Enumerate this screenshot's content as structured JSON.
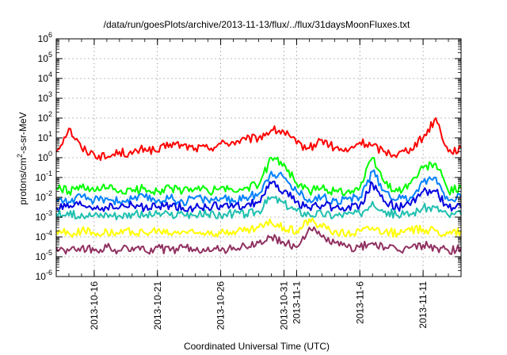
{
  "chart_data": {
    "type": "line",
    "title": "/data/run/goesPlots/archive/2013-11-13/flux/../flux/31daysMoonFluxes.txt",
    "xlabel": "Coordinated Universal Time (UTC)",
    "ylabel": "protons/cm2-s-sr-MeV",
    "ylabel_parts": {
      "pre": "protons/cm",
      "sup": "2",
      "post": "-s-sr-MeV"
    },
    "x_range": [
      "2013-10-13",
      "2013-11-14"
    ],
    "x_ticks": [
      {
        "date": "2013-10-16",
        "label": [
          "2013-10-16"
        ]
      },
      {
        "date": "2013-10-21",
        "label": [
          "2013-10-21"
        ]
      },
      {
        "date": "2013-10-26",
        "label": [
          "2013-10-26"
        ]
      },
      {
        "date": "2013-10-31",
        "label": [
          "2013-10-31"
        ]
      },
      {
        "date": "2013-11-01",
        "label": [
          "2013-11-1"
        ]
      },
      {
        "date": "2013-11-06",
        "label": [
          "2013-11-6"
        ]
      },
      {
        "date": "2013-11-11",
        "label": [
          "2013-11-11"
        ]
      }
    ],
    "y_scale": "log",
    "y_range": [
      1e-06,
      1000000.0
    ],
    "y_ticks": [
      {
        "value": 1e-06,
        "base": "10",
        "exp": "-6"
      },
      {
        "value": 1e-05,
        "base": "10",
        "exp": "-5"
      },
      {
        "value": 0.0001,
        "base": "10",
        "exp": "-4"
      },
      {
        "value": 0.001,
        "base": "10",
        "exp": "-3"
      },
      {
        "value": 0.01,
        "base": "10",
        "exp": "-2"
      },
      {
        "value": 0.1,
        "base": "10",
        "exp": "-1"
      },
      {
        "value": 1,
        "base": "10",
        "exp": "0"
      },
      {
        "value": 10,
        "base": "10",
        "exp": "1"
      },
      {
        "value": 100,
        "base": "10",
        "exp": "2"
      },
      {
        "value": 1000,
        "base": "10",
        "exp": "3"
      },
      {
        "value": 10000,
        "base": "10",
        "exp": "4"
      },
      {
        "value": 100000,
        "base": "10",
        "exp": "5"
      },
      {
        "value": 1000000,
        "base": "10",
        "exp": "6"
      }
    ],
    "grid": true,
    "series": [
      {
        "color": "#ff0000",
        "points": [
          [
            "2013-10-13",
            2
          ],
          [
            "2013-10-14",
            30
          ],
          [
            "2013-10-15",
            3
          ],
          [
            "2013-10-16",
            1.5
          ],
          [
            "2013-10-17",
            1
          ],
          [
            "2013-10-18",
            2
          ],
          [
            "2013-10-19",
            1.5
          ],
          [
            "2013-10-20",
            3
          ],
          [
            "2013-10-21",
            2
          ],
          [
            "2013-10-22",
            5
          ],
          [
            "2013-10-23",
            4
          ],
          [
            "2013-10-24",
            3
          ],
          [
            "2013-10-25",
            3
          ],
          [
            "2013-10-26",
            5
          ],
          [
            "2013-10-27",
            6
          ],
          [
            "2013-10-28",
            8
          ],
          [
            "2013-10-29",
            10
          ],
          [
            "2013-10-30",
            25
          ],
          [
            "2013-10-31",
            20
          ],
          [
            "2013-11-01",
            5
          ],
          [
            "2013-11-02",
            3
          ],
          [
            "2013-11-03",
            8
          ],
          [
            "2013-11-04",
            3
          ],
          [
            "2013-11-05",
            2
          ],
          [
            "2013-11-06",
            6
          ],
          [
            "2013-11-07",
            4
          ],
          [
            "2013-11-08",
            2
          ],
          [
            "2013-11-09",
            1.5
          ],
          [
            "2013-11-10",
            3
          ],
          [
            "2013-11-11",
            10
          ],
          [
            "2013-11-12",
            100
          ],
          [
            "2013-11-13",
            2
          ],
          [
            "2013-11-14",
            3
          ]
        ]
      },
      {
        "color": "#00ff00",
        "points": [
          [
            "2013-10-13",
            0.03
          ],
          [
            "2013-10-14",
            0.02
          ],
          [
            "2013-10-15",
            0.03
          ],
          [
            "2013-10-16",
            0.02
          ],
          [
            "2013-10-17",
            0.03
          ],
          [
            "2013-10-18",
            0.02
          ],
          [
            "2013-10-19",
            0.02
          ],
          [
            "2013-10-20",
            0.03
          ],
          [
            "2013-10-21",
            0.02
          ],
          [
            "2013-10-22",
            0.03
          ],
          [
            "2013-10-23",
            0.02
          ],
          [
            "2013-10-24",
            0.03
          ],
          [
            "2013-10-25",
            0.02
          ],
          [
            "2013-10-26",
            0.03
          ],
          [
            "2013-10-27",
            0.02
          ],
          [
            "2013-10-28",
            0.03
          ],
          [
            "2013-10-29",
            0.04
          ],
          [
            "2013-10-30",
            1
          ],
          [
            "2013-10-31",
            0.5
          ],
          [
            "2013-11-01",
            0.05
          ],
          [
            "2013-11-02",
            0.02
          ],
          [
            "2013-11-03",
            0.03
          ],
          [
            "2013-11-04",
            0.02
          ],
          [
            "2013-11-05",
            0.02
          ],
          [
            "2013-11-06",
            0.03
          ],
          [
            "2013-11-07",
            1
          ],
          [
            "2013-11-08",
            0.05
          ],
          [
            "2013-11-09",
            0.02
          ],
          [
            "2013-11-10",
            0.05
          ],
          [
            "2013-11-11",
            0.3
          ],
          [
            "2013-11-12",
            0.5
          ],
          [
            "2013-11-13",
            0.02
          ],
          [
            "2013-11-14",
            0.03
          ]
        ]
      },
      {
        "color": "#0080ff",
        "points": [
          [
            "2013-10-13",
            0.008
          ],
          [
            "2013-10-14",
            0.006
          ],
          [
            "2013-10-15",
            0.01
          ],
          [
            "2013-10-16",
            0.007
          ],
          [
            "2013-10-17",
            0.009
          ],
          [
            "2013-10-18",
            0.006
          ],
          [
            "2013-10-19",
            0.008
          ],
          [
            "2013-10-20",
            0.01
          ],
          [
            "2013-10-21",
            0.007
          ],
          [
            "2013-10-22",
            0.009
          ],
          [
            "2013-10-23",
            0.006
          ],
          [
            "2013-10-24",
            0.01
          ],
          [
            "2013-10-25",
            0.007
          ],
          [
            "2013-10-26",
            0.009
          ],
          [
            "2013-10-27",
            0.006
          ],
          [
            "2013-10-28",
            0.01
          ],
          [
            "2013-10-29",
            0.015
          ],
          [
            "2013-10-30",
            0.2
          ],
          [
            "2013-10-31",
            0.1
          ],
          [
            "2013-11-01",
            0.02
          ],
          [
            "2013-11-02",
            0.008
          ],
          [
            "2013-11-03",
            0.01
          ],
          [
            "2013-11-04",
            0.007
          ],
          [
            "2013-11-05",
            0.008
          ],
          [
            "2013-11-06",
            0.01
          ],
          [
            "2013-11-07",
            0.2
          ],
          [
            "2013-11-08",
            0.02
          ],
          [
            "2013-11-09",
            0.008
          ],
          [
            "2013-11-10",
            0.01
          ],
          [
            "2013-11-11",
            0.06
          ],
          [
            "2013-11-12",
            0.1
          ],
          [
            "2013-11-13",
            0.007
          ],
          [
            "2013-11-14",
            0.01
          ]
        ]
      },
      {
        "color": "#0000e0",
        "points": [
          [
            "2013-10-13",
            0.003
          ],
          [
            "2013-10-14",
            0.003
          ],
          [
            "2013-10-15",
            0.004
          ],
          [
            "2013-10-16",
            0.003
          ],
          [
            "2013-10-17",
            0.003
          ],
          [
            "2013-10-18",
            0.003
          ],
          [
            "2013-10-19",
            0.004
          ],
          [
            "2013-10-20",
            0.003
          ],
          [
            "2013-10-21",
            0.003
          ],
          [
            "2013-10-22",
            0.004
          ],
          [
            "2013-10-23",
            0.003
          ],
          [
            "2013-10-24",
            0.003
          ],
          [
            "2013-10-25",
            0.003
          ],
          [
            "2013-10-26",
            0.004
          ],
          [
            "2013-10-27",
            0.003
          ],
          [
            "2013-10-28",
            0.004
          ],
          [
            "2013-10-29",
            0.006
          ],
          [
            "2013-10-30",
            0.05
          ],
          [
            "2013-10-31",
            0.02
          ],
          [
            "2013-11-01",
            0.006
          ],
          [
            "2013-11-02",
            0.003
          ],
          [
            "2013-11-03",
            0.004
          ],
          [
            "2013-11-04",
            0.003
          ],
          [
            "2013-11-05",
            0.003
          ],
          [
            "2013-11-06",
            0.004
          ],
          [
            "2013-11-07",
            0.05
          ],
          [
            "2013-11-08",
            0.006
          ],
          [
            "2013-11-09",
            0.003
          ],
          [
            "2013-11-10",
            0.004
          ],
          [
            "2013-11-11",
            0.02
          ],
          [
            "2013-11-12",
            0.02
          ],
          [
            "2013-11-13",
            0.003
          ],
          [
            "2013-11-14",
            0.003
          ]
        ]
      },
      {
        "color": "#20c0b0",
        "points": [
          [
            "2013-10-13",
            0.0015
          ],
          [
            "2013-10-14",
            0.0012
          ],
          [
            "2013-10-15",
            0.0015
          ],
          [
            "2013-10-16",
            0.0012
          ],
          [
            "2013-10-17",
            0.0014
          ],
          [
            "2013-10-18",
            0.0012
          ],
          [
            "2013-10-19",
            0.0015
          ],
          [
            "2013-10-20",
            0.0012
          ],
          [
            "2013-10-21",
            0.0014
          ],
          [
            "2013-10-22",
            0.0012
          ],
          [
            "2013-10-23",
            0.0015
          ],
          [
            "2013-10-24",
            0.0012
          ],
          [
            "2013-10-25",
            0.0014
          ],
          [
            "2013-10-26",
            0.0012
          ],
          [
            "2013-10-27",
            0.0015
          ],
          [
            "2013-10-28",
            0.0014
          ],
          [
            "2013-10-29",
            0.002
          ],
          [
            "2013-10-30",
            0.01
          ],
          [
            "2013-10-31",
            0.005
          ],
          [
            "2013-11-01",
            0.002
          ],
          [
            "2013-11-02",
            0.0014
          ],
          [
            "2013-11-03",
            0.0015
          ],
          [
            "2013-11-04",
            0.0012
          ],
          [
            "2013-11-05",
            0.0014
          ],
          [
            "2013-11-06",
            0.0015
          ],
          [
            "2013-11-07",
            0.006
          ],
          [
            "2013-11-08",
            0.002
          ],
          [
            "2013-11-09",
            0.0012
          ],
          [
            "2013-11-10",
            0.0014
          ],
          [
            "2013-11-11",
            0.003
          ],
          [
            "2013-11-12",
            0.003
          ],
          [
            "2013-11-13",
            0.0012
          ],
          [
            "2013-11-14",
            0.0013
          ]
        ]
      },
      {
        "color": "#ffff00",
        "points": [
          [
            "2013-10-13",
            0.0002
          ],
          [
            "2013-10-14",
            0.00015
          ],
          [
            "2013-10-15",
            0.0002
          ],
          [
            "2013-10-16",
            0.00015
          ],
          [
            "2013-10-17",
            0.0002
          ],
          [
            "2013-10-18",
            0.00015
          ],
          [
            "2013-10-19",
            0.0002
          ],
          [
            "2013-10-20",
            0.00015
          ],
          [
            "2013-10-21",
            0.0002
          ],
          [
            "2013-10-22",
            0.00015
          ],
          [
            "2013-10-23",
            0.0002
          ],
          [
            "2013-10-24",
            0.00015
          ],
          [
            "2013-10-25",
            0.0002
          ],
          [
            "2013-10-26",
            0.00015
          ],
          [
            "2013-10-27",
            0.0002
          ],
          [
            "2013-10-28",
            0.0002
          ],
          [
            "2013-10-29",
            0.0003
          ],
          [
            "2013-10-30",
            0.0005
          ],
          [
            "2013-10-31",
            0.0003
          ],
          [
            "2013-11-01",
            0.0002
          ],
          [
            "2013-11-02",
            0.0008
          ],
          [
            "2013-11-03",
            0.0003
          ],
          [
            "2013-11-04",
            0.0002
          ],
          [
            "2013-11-05",
            0.00015
          ],
          [
            "2013-11-06",
            0.0002
          ],
          [
            "2013-11-07",
            0.0003
          ],
          [
            "2013-11-08",
            0.0002
          ],
          [
            "2013-11-09",
            0.00015
          ],
          [
            "2013-11-10",
            0.0002
          ],
          [
            "2013-11-11",
            0.00025
          ],
          [
            "2013-11-12",
            0.0002
          ],
          [
            "2013-11-13",
            0.00015
          ],
          [
            "2013-11-14",
            0.0002
          ]
        ]
      },
      {
        "color": "#903060",
        "points": [
          [
            "2013-10-13",
            3e-05
          ],
          [
            "2013-10-14",
            2e-05
          ],
          [
            "2013-10-15",
            3e-05
          ],
          [
            "2013-10-16",
            2e-05
          ],
          [
            "2013-10-17",
            3e-05
          ],
          [
            "2013-10-18",
            2e-05
          ],
          [
            "2013-10-19",
            3e-05
          ],
          [
            "2013-10-20",
            2e-05
          ],
          [
            "2013-10-21",
            3e-05
          ],
          [
            "2013-10-22",
            2e-05
          ],
          [
            "2013-10-23",
            3e-05
          ],
          [
            "2013-10-24",
            2e-05
          ],
          [
            "2013-10-25",
            3e-05
          ],
          [
            "2013-10-26",
            2e-05
          ],
          [
            "2013-10-27",
            3e-05
          ],
          [
            "2013-10-28",
            3e-05
          ],
          [
            "2013-10-29",
            5e-05
          ],
          [
            "2013-10-30",
            0.0001
          ],
          [
            "2013-10-31",
            5e-05
          ],
          [
            "2013-11-01",
            3e-05
          ],
          [
            "2013-11-02",
            0.0003
          ],
          [
            "2013-11-03",
            0.0001
          ],
          [
            "2013-11-04",
            5e-05
          ],
          [
            "2013-11-05",
            3e-05
          ],
          [
            "2013-11-06",
            3e-05
          ],
          [
            "2013-11-07",
            5e-05
          ],
          [
            "2013-11-08",
            3e-05
          ],
          [
            "2013-11-09",
            2e-05
          ],
          [
            "2013-11-10",
            3e-05
          ],
          [
            "2013-11-11",
            4e-05
          ],
          [
            "2013-11-12",
            3e-05
          ],
          [
            "2013-11-13",
            2e-05
          ],
          [
            "2013-11-14",
            3e-05
          ]
        ]
      }
    ]
  }
}
